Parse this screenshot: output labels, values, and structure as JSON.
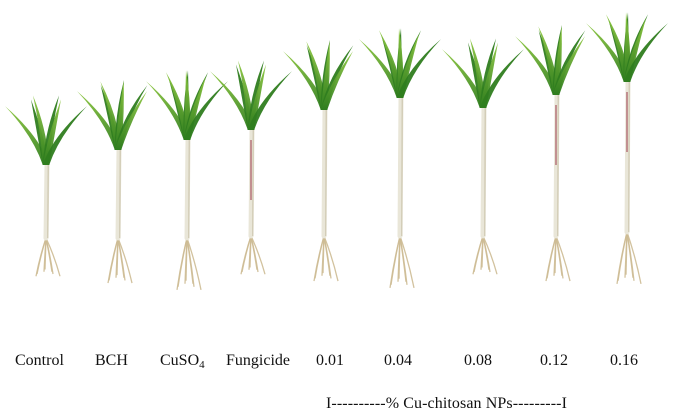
{
  "labels": {
    "control": "Control",
    "bch": "BCH",
    "cuso4_main": "CuSO",
    "cuso4_sub": "4",
    "fungicide": "Fungicide",
    "conc_001": "0.01",
    "conc_004": "0.04",
    "conc_008": "0.08",
    "conc_012": "0.12",
    "conc_016": "0.16"
  },
  "range_note": "I----------% Cu-chitosan NPs---------I",
  "colors": {
    "leaf_dark": "#2f7d1f",
    "leaf_light": "#7fbe2f",
    "stem": "#e9e6d8",
    "root": "#cdbb93"
  },
  "plants": [
    {
      "key": "control",
      "height": 0.62
    },
    {
      "key": "bch",
      "height": 0.78
    },
    {
      "key": "cuso4",
      "height": 0.74
    },
    {
      "key": "fungicide",
      "height": 0.78
    },
    {
      "key": "conc_001",
      "height": 0.82
    },
    {
      "key": "conc_004",
      "height": 0.9
    },
    {
      "key": "conc_008",
      "height": 0.92
    },
    {
      "key": "conc_012",
      "height": 0.95
    },
    {
      "key": "conc_016",
      "height": 1.0
    }
  ]
}
